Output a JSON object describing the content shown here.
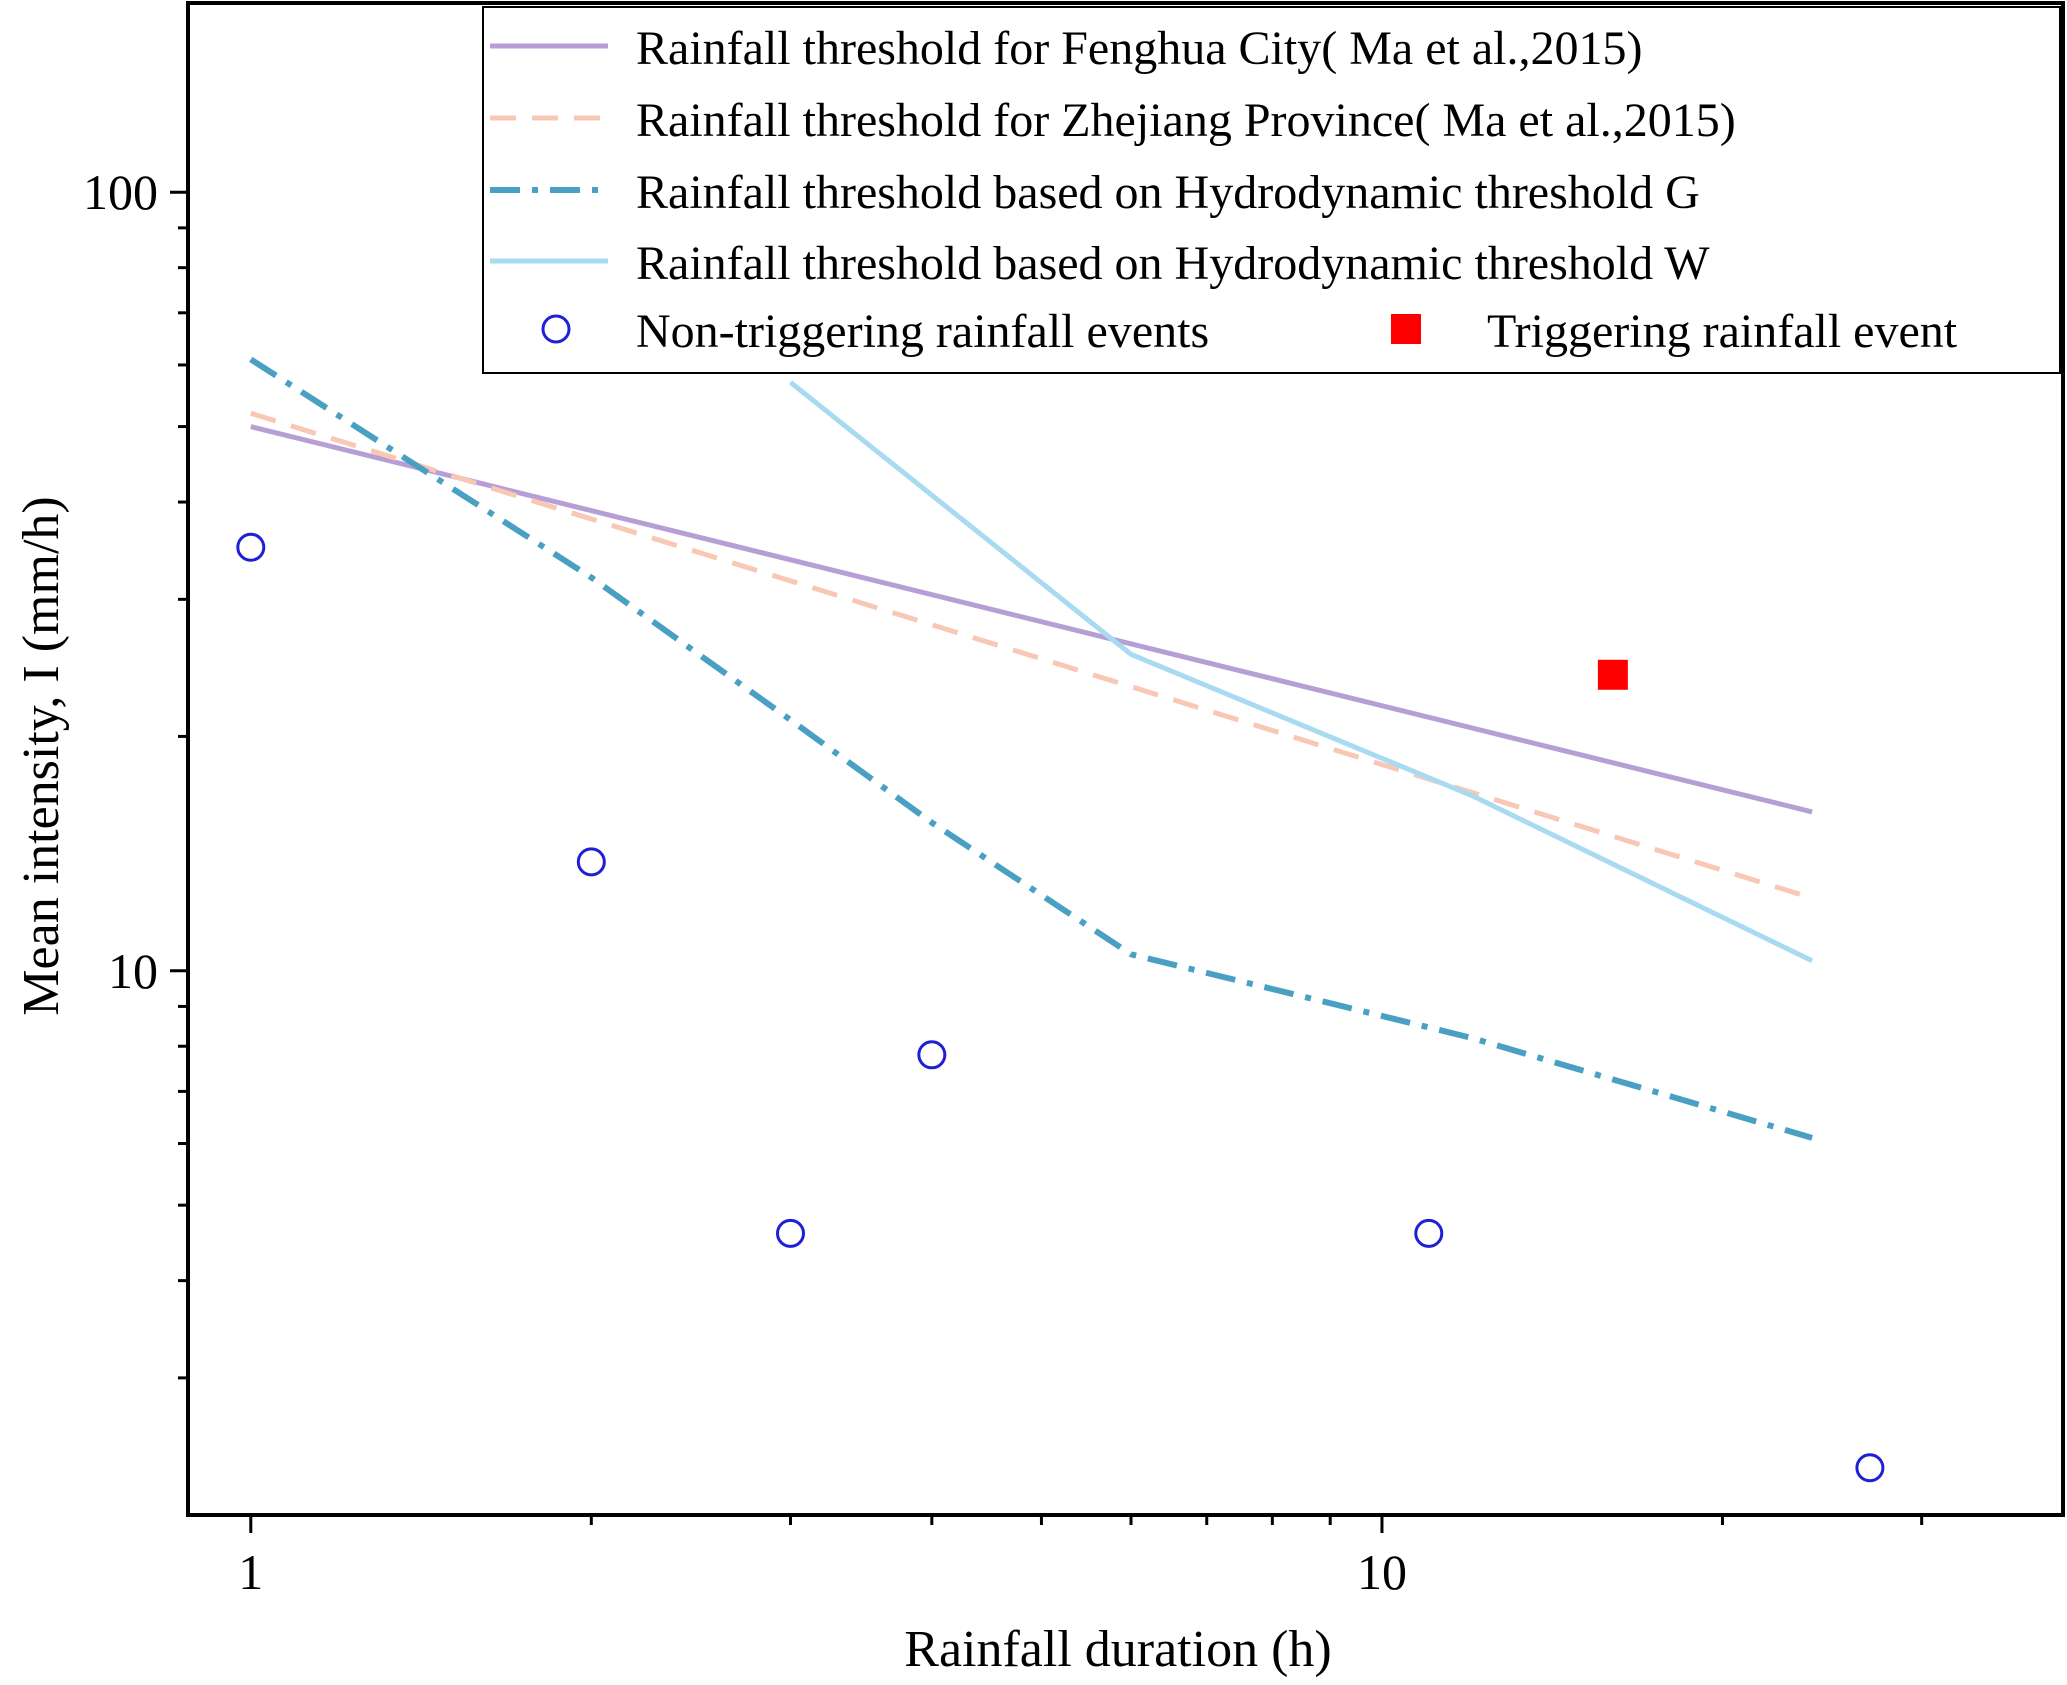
{
  "chart_data": {
    "type": "scatter",
    "title": "",
    "xlabel": "Rainfall duration (h)",
    "ylabel": "Mean intensity, I (mm/h)",
    "xscale": "log",
    "yscale": "log",
    "xlim": [
      0.88,
      40
    ],
    "ylim": [
      2,
      175
    ],
    "x_tick_labels": [
      {
        "value": 1,
        "label": "1"
      },
      {
        "value": 10,
        "label": "10"
      }
    ],
    "y_tick_labels": [
      {
        "value": 10,
        "label": "10"
      },
      {
        "value": 100,
        "label": "100"
      }
    ],
    "x_minor_ticks": [
      2,
      3,
      4,
      5,
      6,
      7,
      8,
      9,
      20,
      30
    ],
    "y_minor_ticks": [
      3,
      4,
      5,
      6,
      7,
      8,
      9,
      20,
      30,
      40,
      50,
      60,
      70,
      80,
      90
    ],
    "series": [
      {
        "name": "Rainfall threshold for Fenghua City( Ma et al.,2015)",
        "kind": "line",
        "style": "solid",
        "color": "#b79fd6",
        "x": [
          1,
          24
        ],
        "y": [
          50,
          16
        ]
      },
      {
        "name": "Rainfall threshold for Zhejiang Province( Ma et al.,2015)",
        "kind": "line",
        "style": "dashed",
        "color": "#f8c8b4",
        "x": [
          1,
          24
        ],
        "y": [
          52,
          12.4
        ]
      },
      {
        "name": "Rainfall threshold based on Hydrodynamic threshold G",
        "kind": "line",
        "style": "dashdot",
        "color": "#4aa0c3",
        "x": [
          1,
          2,
          3,
          4,
          6,
          12,
          24
        ],
        "y": [
          61,
          32,
          21,
          15.5,
          10.5,
          8.2,
          6.1
        ]
      },
      {
        "name": "Rainfall threshold based on Hydrodynamic threshold W",
        "kind": "line",
        "style": "solid",
        "color": "#a8daf2",
        "x": [
          3,
          6,
          12,
          24
        ],
        "y": [
          57,
          25.5,
          16.8,
          10.3
        ]
      },
      {
        "name": "Non-triggering rainfall events",
        "kind": "points",
        "marker": "open-circle",
        "color": "#1f1fd6",
        "x": [
          1,
          2,
          3,
          4,
          11,
          27
        ],
        "y": [
          35,
          13.8,
          4.6,
          7.8,
          4.6,
          2.3
        ]
      },
      {
        "name": "Triggering rainfall event",
        "kind": "points",
        "marker": "filled-square",
        "color": "#ff0000",
        "x": [
          16
        ],
        "y": [
          24
        ]
      }
    ],
    "legend": {
      "position": "top-right",
      "entries": [
        "Rainfall threshold for Fenghua City( Ma et al.,2015)",
        "Rainfall threshold for Zhejiang Province( Ma et al.,2015)",
        "Rainfall threshold based on Hydrodynamic threshold G",
        "Rainfall threshold based on Hydrodynamic threshold W",
        "Non-triggering rainfall events",
        "Triggering rainfall event"
      ]
    }
  }
}
